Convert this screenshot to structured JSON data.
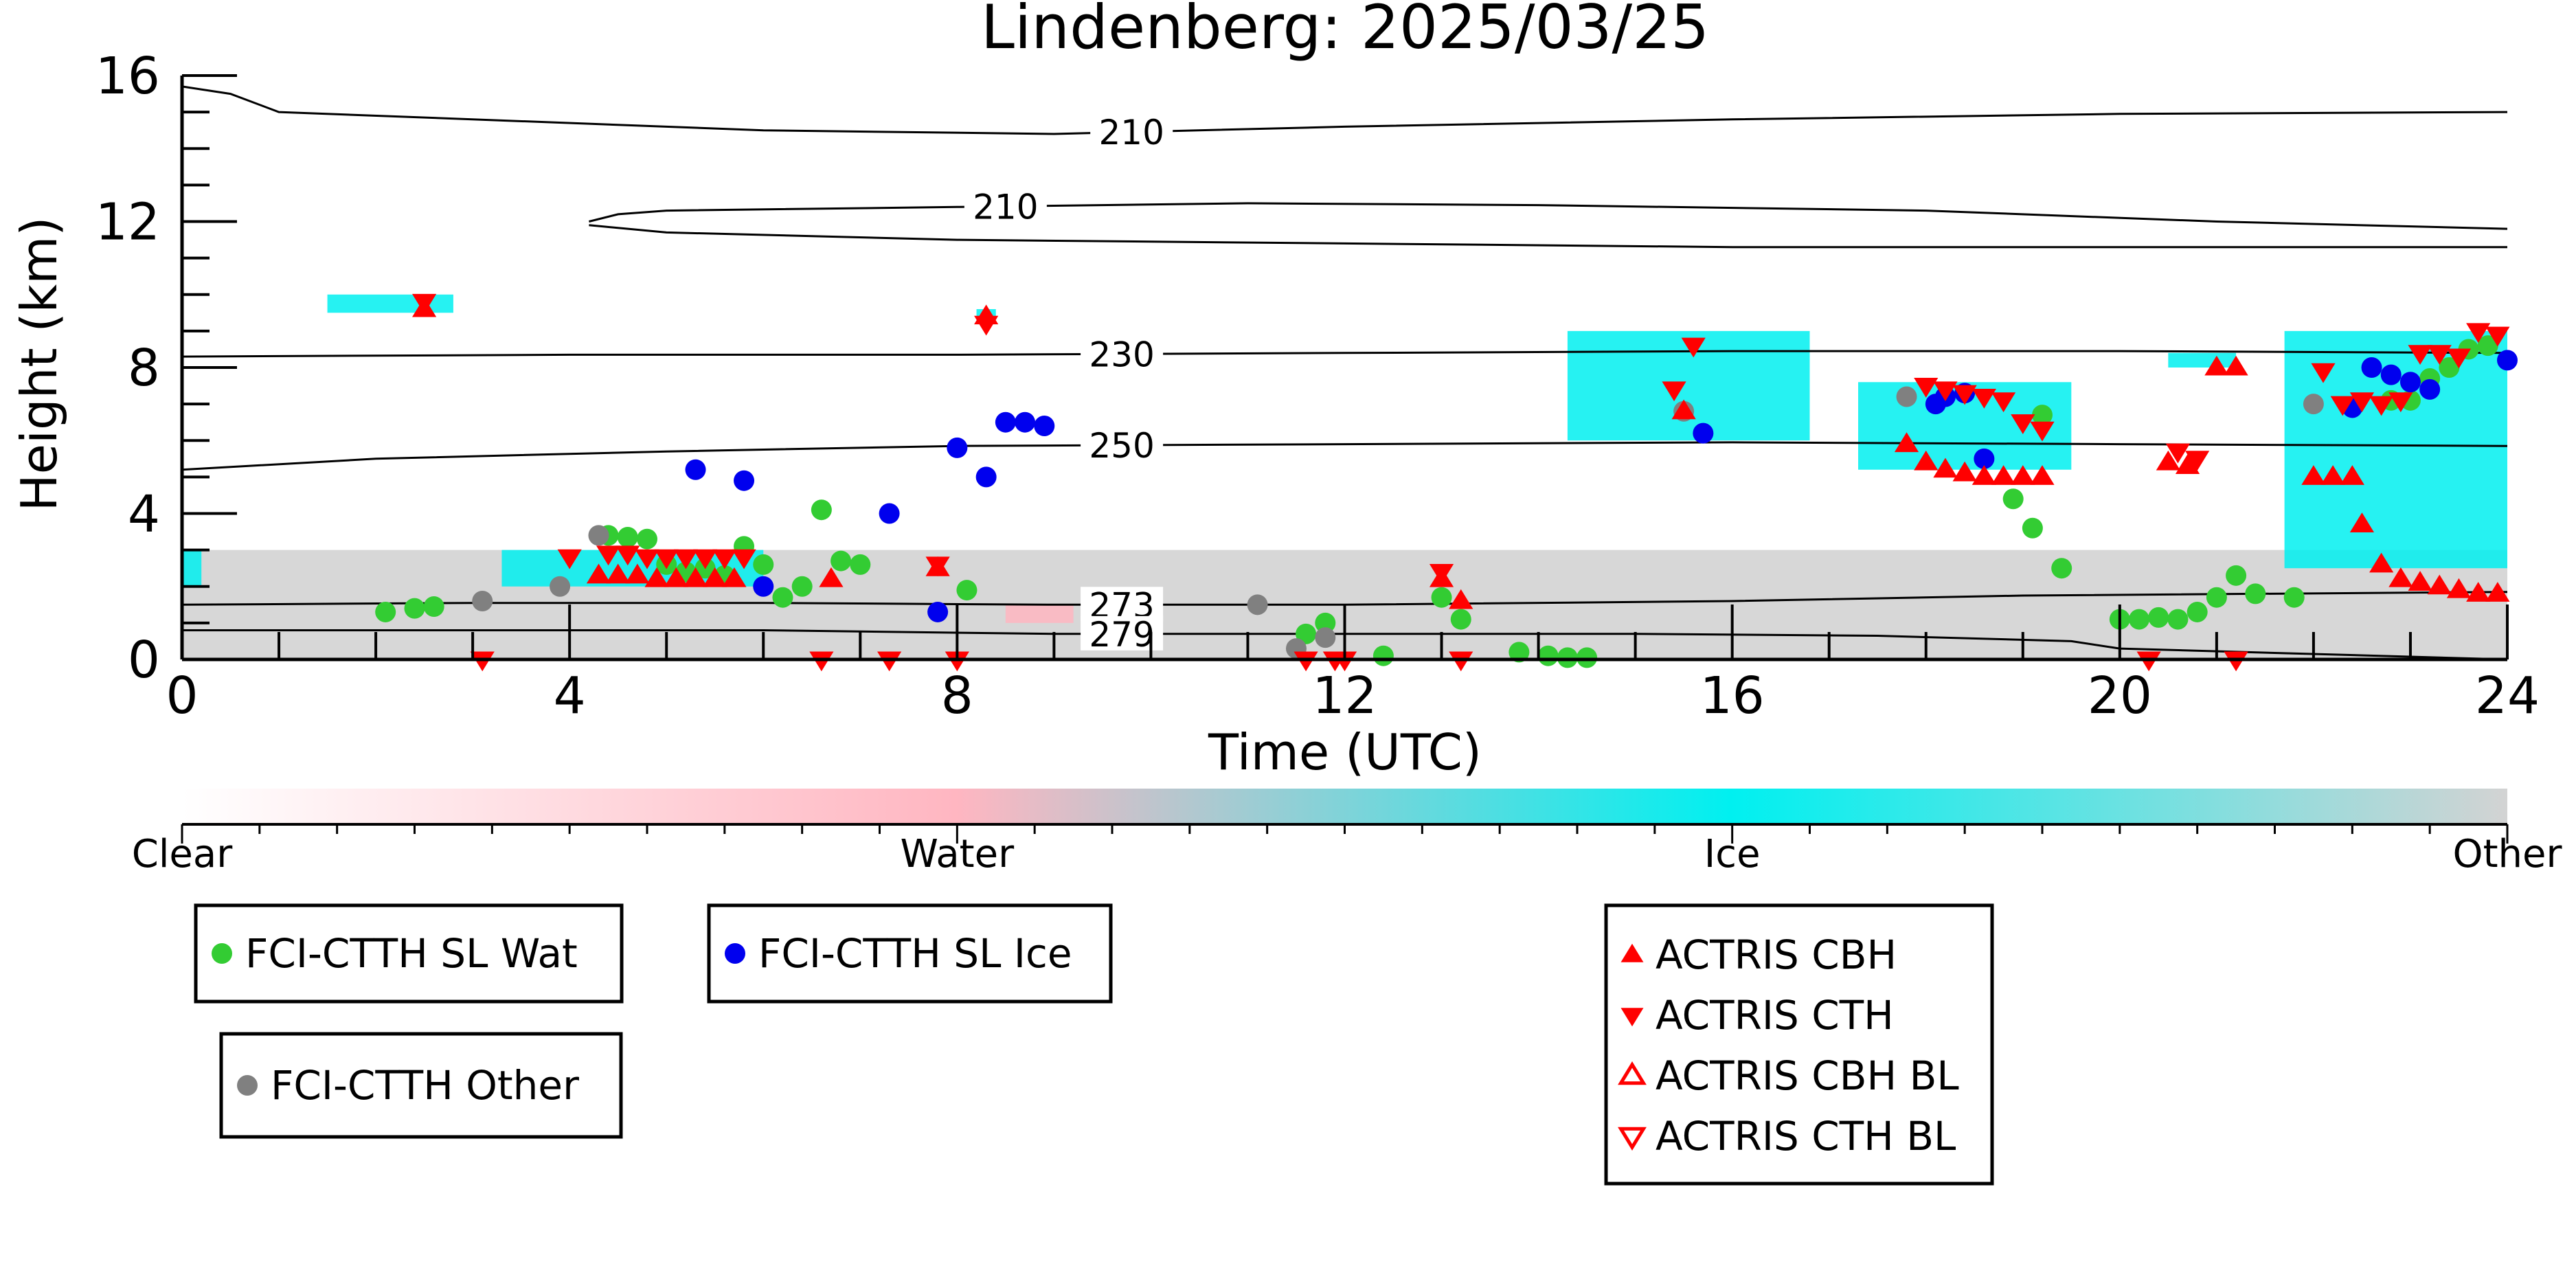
{
  "chart_data": {
    "type": "scatter",
    "title": "Lindenberg: 2025/03/25",
    "xlabel": "Time (UTC)",
    "ylabel": "Height (km)",
    "xlim": [
      0,
      24
    ],
    "ylim": [
      0,
      16
    ],
    "xticks": [
      0,
      4,
      8,
      12,
      16,
      20,
      24
    ],
    "yticks": [
      0,
      4,
      8,
      12,
      16
    ],
    "grid": false,
    "colors": {
      "wat": "#33cc33",
      "ice": "#0000ee",
      "other": "#808080",
      "actris": "#ff0000",
      "clear": "#ffffff",
      "water": "#ffb6c1",
      "icefield": "#00f0f0",
      "otherfield": "#d3d3d3"
    },
    "cloud_mask": {
      "legend_labels": [
        "Clear",
        "Water",
        "Ice",
        "Other"
      ],
      "regions": [
        {
          "class": "Other",
          "x": [
            0.0,
            24.0
          ],
          "y": [
            0.0,
            3.0
          ]
        },
        {
          "class": "Ice",
          "x": [
            0.0,
            0.2
          ],
          "y": [
            2.0,
            3.0
          ]
        },
        {
          "class": "Ice",
          "x": [
            1.5,
            2.8
          ],
          "y": [
            9.5,
            10.0
          ]
        },
        {
          "class": "Ice",
          "x": [
            3.3,
            6.0
          ],
          "y": [
            2.0,
            3.0
          ]
        },
        {
          "class": "Ice",
          "x": [
            8.2,
            8.4
          ],
          "y": [
            9.2,
            9.6
          ]
        },
        {
          "class": "Ice",
          "x": [
            14.3,
            16.8
          ],
          "y": [
            6.0,
            9.0
          ]
        },
        {
          "class": "Ice",
          "x": [
            17.3,
            19.5
          ],
          "y": [
            5.2,
            7.6
          ]
        },
        {
          "class": "Ice",
          "x": [
            20.5,
            21.2
          ],
          "y": [
            8.0,
            8.4
          ]
        },
        {
          "class": "Ice",
          "x": [
            21.7,
            24.0
          ],
          "y": [
            2.5,
            9.0
          ]
        },
        {
          "class": "Water",
          "x": [
            8.5,
            9.2
          ],
          "y": [
            1.0,
            1.5
          ]
        }
      ]
    },
    "contours": [
      {
        "label": "210",
        "label_x": 9.8,
        "x": [
          0,
          0.5,
          1.0,
          6.0,
          9.0,
          12.0,
          16.0,
          20.0,
          24.0
        ],
        "y": [
          15.7,
          15.5,
          15.0,
          14.5,
          14.4,
          14.6,
          14.8,
          14.95,
          15.0
        ]
      },
      {
        "label": "210",
        "label_x": 8.5,
        "x": [
          4.2,
          4.5,
          5.0,
          8.0,
          11.0,
          14.0,
          18.0,
          21.0,
          24.0
        ],
        "y": [
          12.0,
          12.2,
          12.3,
          12.4,
          12.5,
          12.45,
          12.3,
          12.0,
          11.8
        ]
      },
      {
        "label": "",
        "label_x": 0,
        "x": [
          4.2,
          5.0,
          8.0,
          12.0,
          16.0,
          20.0,
          24.0
        ],
        "y": [
          11.9,
          11.7,
          11.5,
          11.4,
          11.3,
          11.3,
          11.3
        ]
      },
      {
        "label": "230",
        "label_x": 9.7,
        "x": [
          0,
          4,
          8,
          12,
          16,
          20,
          24
        ],
        "y": [
          8.3,
          8.35,
          8.35,
          8.4,
          8.45,
          8.45,
          8.4
        ]
      },
      {
        "label": "250",
        "label_x": 9.7,
        "x": [
          0,
          2,
          5,
          8,
          12,
          16,
          20,
          24
        ],
        "y": [
          5.2,
          5.5,
          5.7,
          5.85,
          5.9,
          5.95,
          5.9,
          5.85
        ]
      },
      {
        "label": "273",
        "label_x": 9.7,
        "x": [
          0,
          3,
          6,
          9,
          12,
          16,
          19,
          24
        ],
        "y": [
          1.5,
          1.55,
          1.55,
          1.5,
          1.5,
          1.6,
          1.75,
          1.85
        ]
      },
      {
        "label": "279",
        "label_x": 9.7,
        "x": [
          0,
          3,
          6,
          9,
          12,
          15,
          17.5,
          19.5,
          20.0,
          24.0
        ],
        "y": [
          0.8,
          0.8,
          0.8,
          0.7,
          0.7,
          0.7,
          0.65,
          0.5,
          0.3,
          0.0
        ]
      }
    ],
    "series": [
      {
        "name": "FCI-CTTH SL Wat",
        "marker": "circle",
        "color": "#33cc33",
        "legend_group": 0,
        "x": [
          2.1,
          2.4,
          2.6,
          4.4,
          4.6,
          4.8,
          5.0,
          5.2,
          5.4,
          5.6,
          5.8,
          6.0,
          6.2,
          6.4,
          6.6,
          6.8,
          7.0,
          8.1,
          11.6,
          11.8,
          12.4,
          13.0,
          13.2,
          13.8,
          14.1,
          14.3,
          14.5,
          18.9,
          19.1,
          19.2,
          19.4,
          20.0,
          20.2,
          20.4,
          20.6,
          20.8,
          21.0,
          21.2,
          21.4,
          21.8,
          22.8,
          23.0,
          23.2,
          23.4,
          23.6,
          23.8
        ],
        "y": [
          1.3,
          1.4,
          1.45,
          3.4,
          3.35,
          3.3,
          2.6,
          2.4,
          2.5,
          2.3,
          3.1,
          2.6,
          1.7,
          2.0,
          4.1,
          2.7,
          2.6,
          1.9,
          0.7,
          1.0,
          0.1,
          1.7,
          1.1,
          0.2,
          0.1,
          0.05,
          0.05,
          4.4,
          3.6,
          6.7,
          2.5,
          1.1,
          1.1,
          1.15,
          1.1,
          1.3,
          1.7,
          2.3,
          1.8,
          1.7,
          7.1,
          7.1,
          7.7,
          8.0,
          8.5,
          8.6
        ]
      },
      {
        "name": "FCI-CTTH SL Ice",
        "marker": "circle",
        "color": "#0000ee",
        "legend_group": 1,
        "x": [
          5.3,
          5.8,
          6.0,
          7.3,
          7.8,
          8.0,
          8.3,
          8.5,
          8.7,
          8.9,
          15.7,
          18.1,
          18.2,
          18.4,
          18.6,
          22.4,
          22.6,
          22.8,
          23.0,
          23.2,
          24.0
        ],
        "y": [
          5.2,
          4.9,
          2.0,
          4.0,
          1.3,
          5.8,
          5.0,
          6.5,
          6.5,
          6.4,
          6.2,
          7.0,
          7.2,
          7.3,
          5.5,
          6.9,
          8.0,
          7.8,
          7.6,
          7.4,
          8.2
        ]
      },
      {
        "name": "FCI-CTTH Other",
        "marker": "circle",
        "color": "#808080",
        "legend_group": 2,
        "x": [
          3.1,
          3.9,
          4.3,
          11.1,
          11.5,
          11.8,
          15.5,
          17.8,
          22.0
        ],
        "y": [
          1.6,
          2.0,
          3.4,
          1.5,
          0.3,
          0.6,
          6.8,
          7.2,
          7.0
        ]
      },
      {
        "name": "ACTRIS CBH",
        "marker": "triangle-up",
        "color": "#ff0000",
        "legend_group": 3,
        "x": [
          2.5,
          4.3,
          4.5,
          4.7,
          4.9,
          5.1,
          5.3,
          5.5,
          5.7,
          6.7,
          7.8,
          8.3,
          13.0,
          13.2,
          15.5,
          17.8,
          18.0,
          18.2,
          18.4,
          18.6,
          18.8,
          19.0,
          19.2,
          20.5,
          20.7,
          21.0,
          21.2,
          22.0,
          22.2,
          22.4,
          22.5,
          22.7,
          22.9,
          23.1,
          23.3,
          23.5,
          23.7,
          23.9
        ],
        "y": [
          9.6,
          2.3,
          2.3,
          2.3,
          2.2,
          2.2,
          2.2,
          2.2,
          2.2,
          2.2,
          2.5,
          9.4,
          2.2,
          1.6,
          6.8,
          5.9,
          5.4,
          5.2,
          5.1,
          5.0,
          5.0,
          5.0,
          5.0,
          5.4,
          5.3,
          8.0,
          8.0,
          5.0,
          5.0,
          5.0,
          3.7,
          2.6,
          2.2,
          2.1,
          2.0,
          1.9,
          1.8,
          1.8
        ]
      },
      {
        "name": "ACTRIS CTH",
        "marker": "triangle-down",
        "color": "#ff0000",
        "legend_group": 3,
        "x": [
          2.5,
          3.1,
          4.0,
          4.4,
          4.6,
          4.8,
          5.0,
          5.2,
          5.4,
          5.6,
          5.8,
          6.6,
          7.3,
          7.8,
          8.0,
          8.3,
          11.6,
          11.9,
          12.0,
          13.0,
          13.2,
          15.4,
          15.6,
          18.0,
          18.2,
          18.4,
          18.6,
          18.8,
          19.0,
          19.2,
          20.3,
          20.6,
          20.8,
          21.2,
          22.1,
          22.3,
          22.5,
          22.7,
          22.9,
          23.1,
          23.3,
          23.5,
          23.7,
          23.9
        ],
        "y": [
          9.8,
          0.0,
          2.8,
          2.9,
          2.9,
          2.8,
          2.8,
          2.8,
          2.8,
          2.8,
          2.8,
          0.0,
          0.0,
          2.6,
          0.0,
          9.2,
          0.0,
          0.0,
          0.0,
          2.4,
          0.0,
          7.4,
          8.6,
          7.5,
          7.4,
          7.3,
          7.2,
          7.1,
          6.5,
          6.3,
          0.0,
          5.7,
          5.5,
          0.0,
          7.9,
          7.0,
          7.1,
          7.0,
          7.1,
          8.4,
          8.4,
          8.3,
          9.0,
          8.9
        ]
      },
      {
        "name": "ACTRIS CBH BL",
        "marker": "triangle-up-open",
        "color": "#ff0000",
        "legend_group": 3,
        "x": [],
        "y": []
      },
      {
        "name": "ACTRIS CTH BL",
        "marker": "triangle-down-open",
        "color": "#ff0000",
        "legend_group": 3,
        "x": [],
        "y": []
      }
    ]
  }
}
